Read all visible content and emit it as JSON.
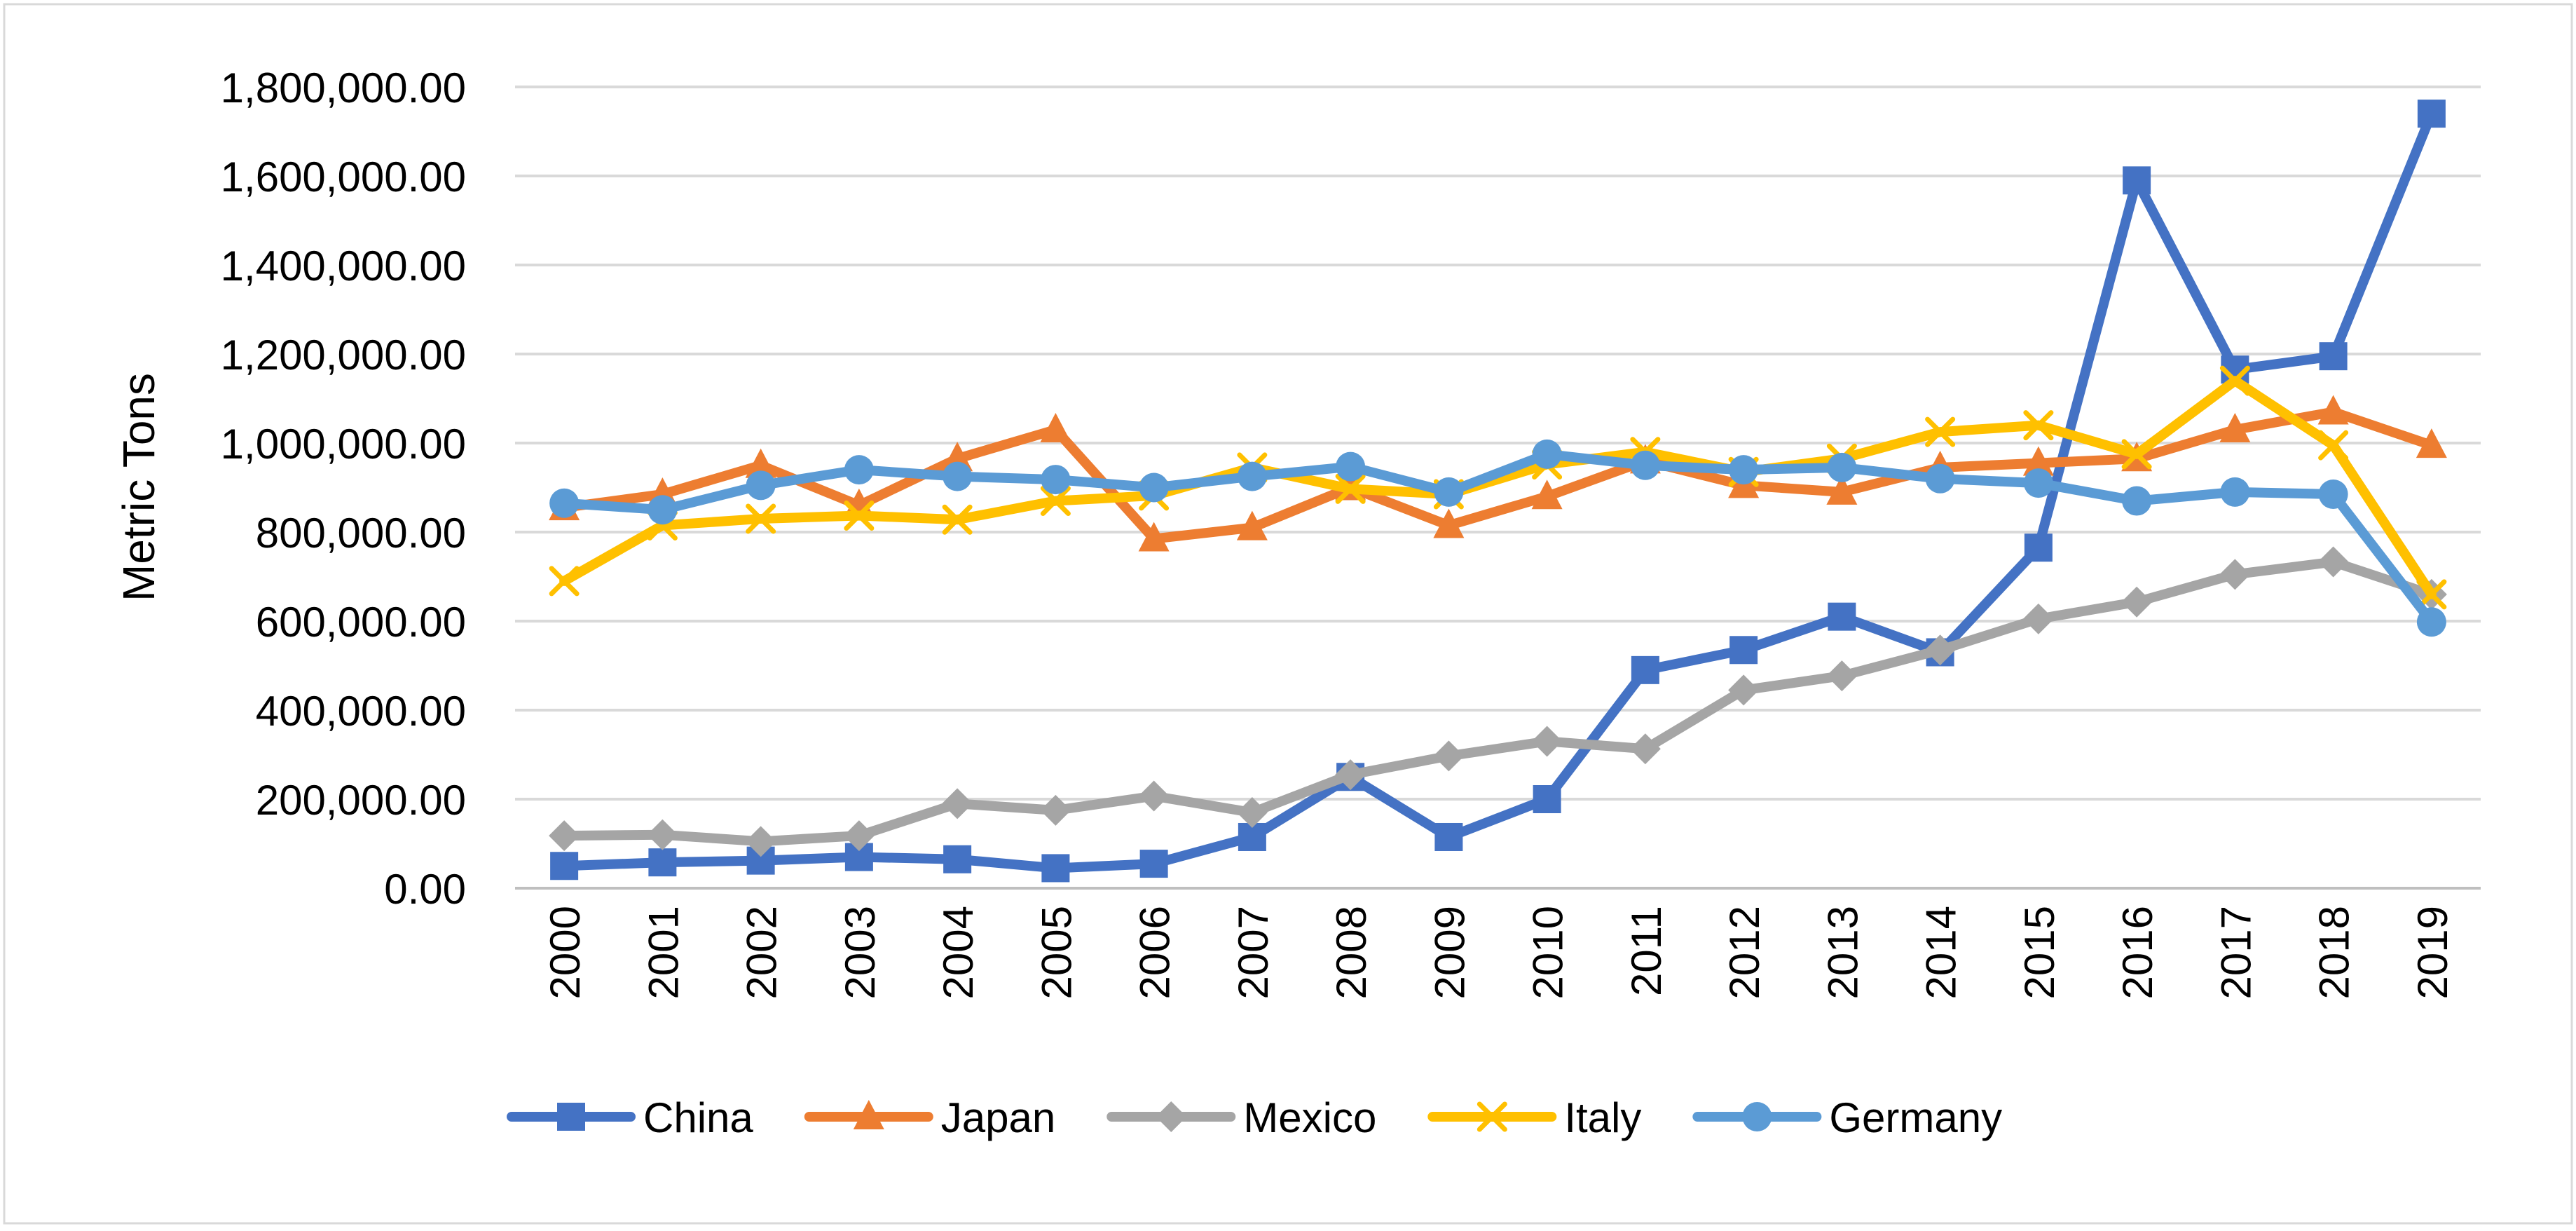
{
  "chart_data": {
    "type": "line",
    "title": "",
    "xlabel": "",
    "ylabel": "Metric Tons",
    "ylim": [
      0,
      1800000
    ],
    "ytick_values": [
      0,
      200000,
      400000,
      600000,
      800000,
      1000000,
      1200000,
      1400000,
      1600000,
      1800000
    ],
    "ytick_labels": [
      "0.00",
      "200,000.00",
      "400,000.00",
      "600,000.00",
      "800,000.00",
      "1,000,000.00",
      "1,200,000.00",
      "1,400,000.00",
      "1,600,000.00",
      "1,800,000.00"
    ],
    "categories": [
      "2000",
      "2001",
      "2002",
      "2003",
      "2004",
      "2005",
      "2006",
      "2007",
      "2008",
      "2009",
      "2010",
      "2011",
      "2012",
      "2013",
      "2014",
      "2015",
      "2016",
      "2017",
      "2018",
      "2019"
    ],
    "grid": true,
    "legend_position": "bottom",
    "series": [
      {
        "name": "China",
        "color": "#4472C4",
        "marker": "square",
        "values": [
          50000,
          58000,
          62000,
          70000,
          65000,
          45000,
          55000,
          115000,
          250000,
          115000,
          200000,
          490000,
          535000,
          610000,
          530000,
          765000,
          1590000,
          1165000,
          1195000,
          1740000
        ]
      },
      {
        "name": "Japan",
        "color": "#ED7D31",
        "marker": "triangle",
        "values": [
          855000,
          885000,
          950000,
          860000,
          965000,
          1030000,
          785000,
          810000,
          900000,
          815000,
          880000,
          960000,
          905000,
          890000,
          945000,
          955000,
          965000,
          1030000,
          1070000,
          995000
        ]
      },
      {
        "name": "Mexico",
        "color": "#A5A5A5",
        "marker": "diamond",
        "values": [
          118000,
          120000,
          105000,
          118000,
          190000,
          175000,
          207000,
          170000,
          255000,
          297000,
          330000,
          313000,
          445000,
          477000,
          535000,
          605000,
          643000,
          705000,
          733000,
          660000
        ]
      },
      {
        "name": "Italy",
        "color": "#FFC000",
        "marker": "x",
        "values": [
          690000,
          815000,
          830000,
          837000,
          828000,
          870000,
          882000,
          945000,
          897000,
          885000,
          952000,
          980000,
          935000,
          965000,
          1025000,
          1040000,
          975000,
          1140000,
          995000,
          660000
        ]
      },
      {
        "name": "Germany",
        "color": "#5B9BD5",
        "marker": "circle",
        "values": [
          865000,
          850000,
          905000,
          940000,
          925000,
          918000,
          900000,
          925000,
          947000,
          890000,
          975000,
          950000,
          940000,
          945000,
          920000,
          910000,
          870000,
          890000,
          885000,
          598000
        ]
      }
    ]
  }
}
